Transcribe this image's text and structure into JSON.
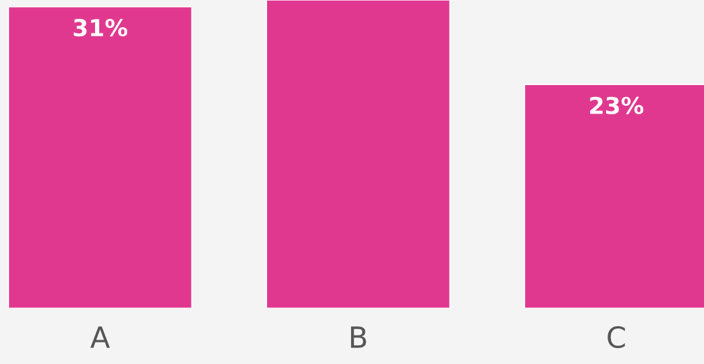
{
  "chart_data": {
    "type": "bar",
    "categories": [
      "A",
      "B",
      "C"
    ],
    "values": [
      31,
      31.7,
      23
    ],
    "value_labels": [
      "31%",
      null,
      "23%"
    ],
    "color": "#e0388f",
    "ylim": [
      0,
      31.7
    ],
    "tick_labels": "x",
    "grid": false,
    "legend": false
  }
}
